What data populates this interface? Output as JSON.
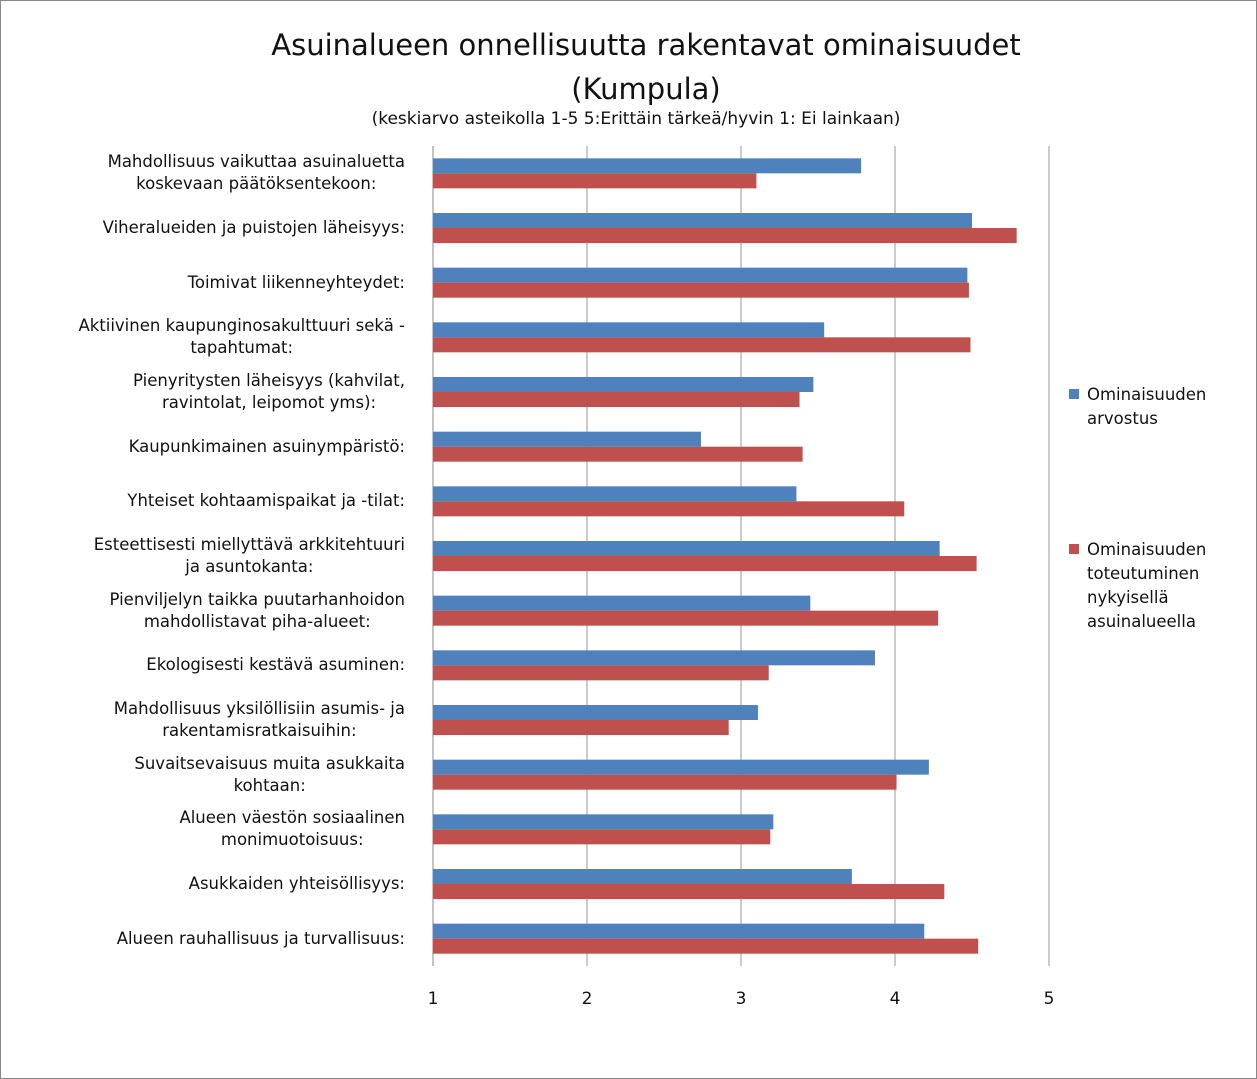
{
  "chart_data": {
    "type": "barh",
    "title": "Asuinalueen onnellisuutta rakentavat ominaisuudet\n(Kumpula)",
    "subtitle": "(keskiarvo asteikolla 1-5  5:Erittäin tärkeä/hyvin 1: Ei lainkaan)",
    "categories": [
      "Mahdollisuus vaikuttaa asuinaluetta\nkoskevaan päätöksentekoon:",
      "Viheralueiden ja puistojen läheisyys:",
      "Toimivat liikenneyhteydet:",
      "Aktiivinen kaupunginosakulttuuri sekä -\ntapahtumat:",
      "Pienyritysten läheisyys (kahvilat,\nravintolat, leipomot yms):",
      "Kaupunkimainen asuinympäristö:",
      "Yhteiset kohtaamispaikat ja -tilat:",
      "Esteettisesti miellyttävä arkkitehtuuri\nja asuntokanta:",
      "Pienviljelyn taikka puutarhanhoidon\nmahdollistavat piha-alueet:",
      "Ekologisesti kestävä asuminen:",
      "Mahdollisuus yksilöllisiin asumis- ja\nrakentamisratkaisuihin:",
      "Suvaitsevaisuus muita asukkaita\nkohtaan:",
      "Alueen väestön sosiaalinen\nmonimuotoisuus:",
      "Asukkaiden yhteisöllisyys:",
      "Alueen rauhallisuus ja turvallisuus:"
    ],
    "series": [
      {
        "name": "Ominaisuuden\narvostus",
        "color": "#4f81bd",
        "values": [
          3.78,
          4.5,
          4.47,
          3.54,
          3.47,
          2.74,
          3.36,
          4.29,
          3.45,
          3.87,
          3.11,
          4.22,
          3.21,
          3.72,
          4.19
        ]
      },
      {
        "name": "Ominaisuuden\ntoteutuminen\nnykyisellä\nasuinalueella",
        "color": "#c0504d",
        "values": [
          3.1,
          4.79,
          4.48,
          4.49,
          3.38,
          3.4,
          4.06,
          4.53,
          4.28,
          3.18,
          2.92,
          4.01,
          3.19,
          4.32,
          4.54
        ]
      }
    ],
    "xlim": [
      1,
      5
    ],
    "xticks": [
      1,
      2,
      3,
      4,
      5
    ],
    "grid": true,
    "legend": "right"
  }
}
